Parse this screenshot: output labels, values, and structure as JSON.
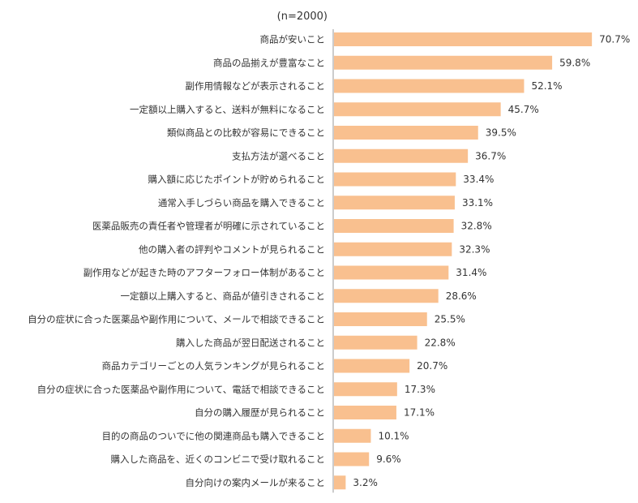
{
  "chart_data": {
    "type": "bar",
    "orientation": "horizontal",
    "note": "(n=2000)",
    "unit": "%",
    "categories": [
      "商品が安いこと",
      "商品の品揃えが豊富なこと",
      "副作用情報などが表示されること",
      "一定額以上購入すると、送料が無料になること",
      "類似商品との比較が容易にできること",
      "支払方法が選べること",
      "購入額に応じたポイントが貯められること",
      "通常入手しづらい商品を購入できること",
      "医薬品販売の責任者や管理者が明確に示されていること",
      "他の購入者の評判やコメントが見られること",
      "副作用などが起きた時のアフターフォロー体制があること",
      "一定額以上購入すると、商品が値引きされること",
      "自分の症状に合った医薬品や副作用について、メールで相談できること",
      "購入した商品が翌日配送されること",
      "商品カテゴリーごとの人気ランキングが見られること",
      "自分の症状に合った医薬品や副作用について、電話で相談できること",
      "自分の購入履歴が見られること",
      "目的の商品のついでに他の関連商品も購入できること",
      "購入した商品を、近くのコンビニで受け取れること",
      "自分向けの案内メールが来ること"
    ],
    "values": [
      70.7,
      59.8,
      52.1,
      45.7,
      39.5,
      36.7,
      33.4,
      33.1,
      32.8,
      32.3,
      31.4,
      28.6,
      25.5,
      22.8,
      20.7,
      17.3,
      17.1,
      10.1,
      9.6,
      3.2
    ],
    "value_labels": [
      "70.7%",
      "59.8%",
      "52.1%",
      "45.7%",
      "39.5%",
      "36.7%",
      "33.4%",
      "33.1%",
      "32.8%",
      "32.3%",
      "31.4%",
      "28.6%",
      "25.5%",
      "22.8%",
      "20.7%",
      "17.3%",
      "17.1%",
      "10.1%",
      "9.6%",
      "3.2%"
    ],
    "bar_color": "#F9C08F",
    "axis_line_color": "#999999",
    "grid": false,
    "legend": "none"
  }
}
